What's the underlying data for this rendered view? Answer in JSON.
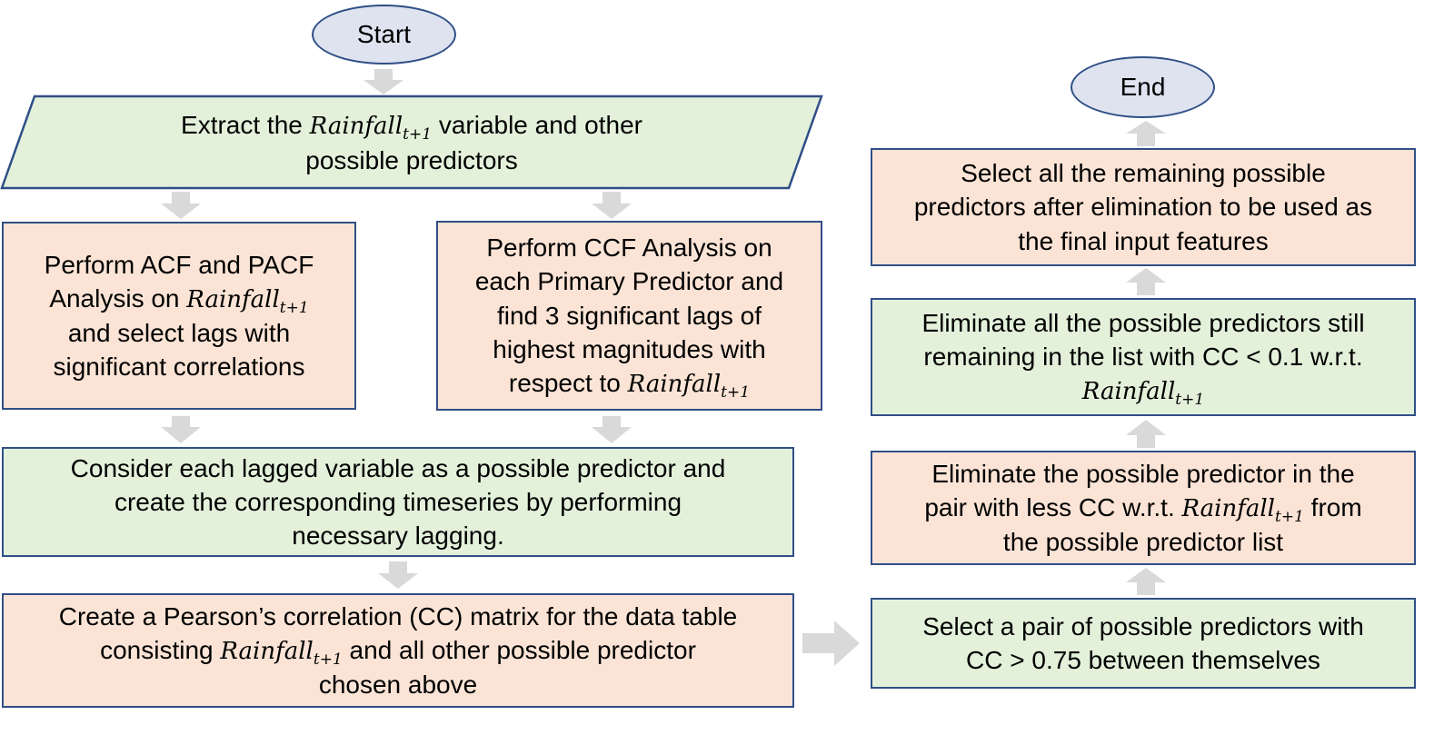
{
  "start": {
    "label": "Start"
  },
  "end": {
    "label": "End"
  },
  "extract": {
    "line1_pre": "Extract the ",
    "var_base": "Rainfall",
    "var_sub": "t+1",
    "line1_post": " variable and other",
    "line2": "possible predictors"
  },
  "acf": {
    "line1": "Perform ACF and PACF",
    "line2_pre": "Analysis on ",
    "var_base": "Rainfall",
    "var_sub": "t+1",
    "line3": "and select lags with",
    "line4": "significant correlations"
  },
  "ccf": {
    "line1": "Perform CCF Analysis on",
    "line2": "each Primary Predictor and",
    "line3": "find 3 significant lags of",
    "line4": "highest magnitudes with",
    "line5_pre": "respect to ",
    "var_base": "Rainfall",
    "var_sub": "t+1"
  },
  "consider": {
    "line1": "Consider each lagged variable as a possible predictor and",
    "line2": "create the corresponding timeseries by performing",
    "line3": "necessary lagging."
  },
  "pearson": {
    "line1": "Create a Pearson’s correlation (CC) matrix for the data table",
    "line2_pre": "consisting ",
    "var_base": "Rainfall",
    "var_sub": "t+1",
    "line2_post": " and all other possible predictor",
    "line3": "chosen above"
  },
  "select_pair": {
    "line1": "Select a pair of possible predictors with",
    "line2": "CC > 0.75 between themselves"
  },
  "eliminate_pair": {
    "line1": "Eliminate the possible predictor in the",
    "line2_pre": "pair with less CC w.r.t. ",
    "var_base": "Rainfall",
    "var_sub": "t+1",
    "line2_post": " from",
    "line3": "the possible predictor list"
  },
  "eliminate_low": {
    "line1": "Eliminate all the possible predictors still",
    "line2": "remaining in the list with CC < 0.1 w.r.t.",
    "var_base": "Rainfall",
    "var_sub": "t+1"
  },
  "select_remaining": {
    "line1": "Select all the remaining possible",
    "line2": "predictors after elimination to be used as",
    "line3": "the final input features"
  },
  "colors": {
    "border": "#2f4f86",
    "orange_fill": "#fbe4d6",
    "green_fill": "#e3f1db",
    "oval_fill": "#dee3ef",
    "arrow": "#d9d9d9"
  }
}
